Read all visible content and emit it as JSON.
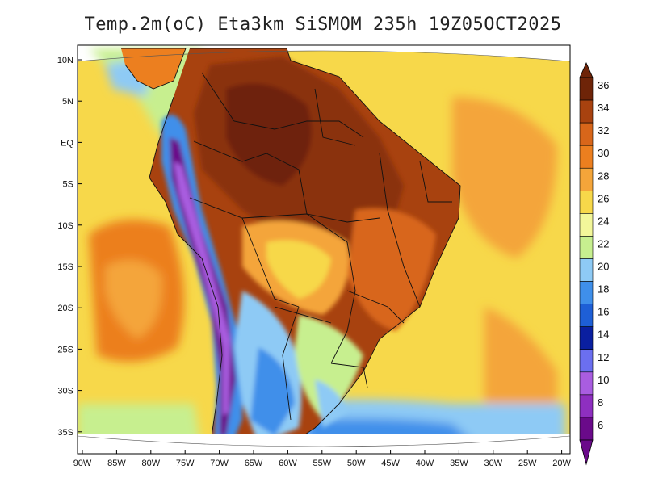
{
  "title": "Temp.2m(oC) Eta3km SiSMOM 235h 19Z05OCT2025",
  "lat_labels": [
    "10N",
    "5N",
    "EQ",
    "5S",
    "10S",
    "15S",
    "20S",
    "25S",
    "30S",
    "35S"
  ],
  "lon_labels": [
    "90W",
    "85W",
    "80W",
    "75W",
    "70W",
    "65W",
    "60W",
    "55W",
    "50W",
    "45W",
    "40W",
    "35W",
    "30W",
    "25W",
    "20W"
  ],
  "colorbar": {
    "labels": [
      "6",
      "8",
      "10",
      "12",
      "14",
      "16",
      "18",
      "20",
      "22",
      "24",
      "26",
      "28",
      "30",
      "32",
      "34",
      "36"
    ],
    "colors": [
      "#6a0a8a",
      "#8e2fc0",
      "#a95de0",
      "#6b6ff0",
      "#0a1fa0",
      "#1e5fd6",
      "#3f8fea",
      "#8ecaf5",
      "#c7ef8f",
      "#f3f79a",
      "#f7d84a",
      "#f4a53a",
      "#ec7f1f",
      "#d8661a",
      "#a8420f",
      "#6e2408"
    ]
  },
  "chart_data": {
    "type": "heatmap",
    "title": "Temp.2m(oC) Eta3km SiSMOM 235h 19Z05OCT2025",
    "variable": "2 m temperature",
    "units": "oC",
    "model": "Eta3km SiSMOM",
    "forecast_hour": "235h",
    "valid_time": "19Z05OCT2025",
    "lon_range": [
      -90,
      -20
    ],
    "lat_range": [
      -38,
      12
    ],
    "colorbar_range": [
      6,
      36
    ],
    "colorbar_step": 2
  }
}
